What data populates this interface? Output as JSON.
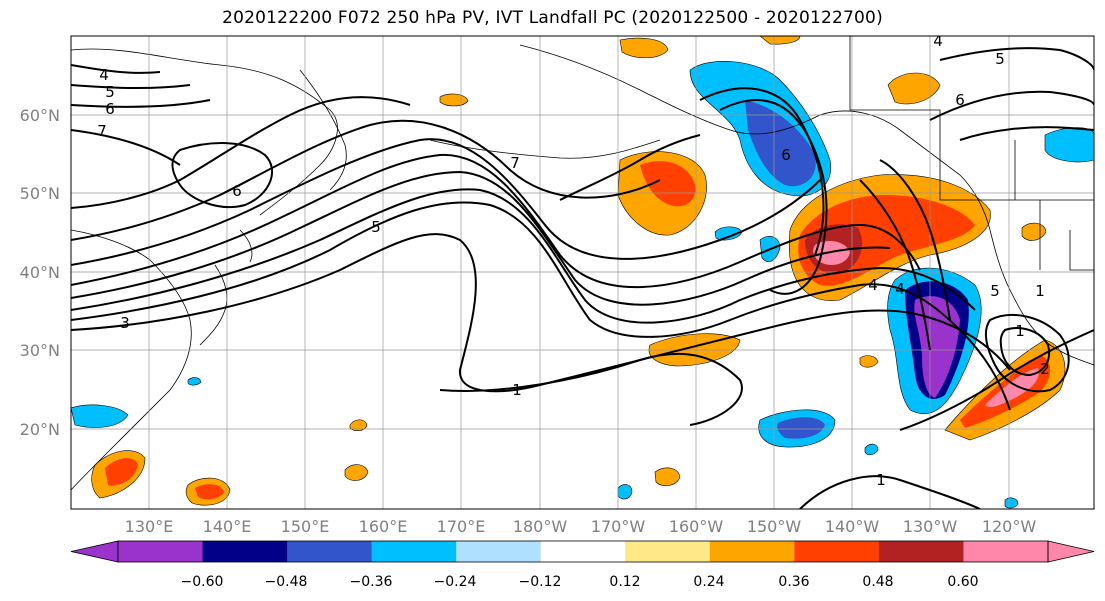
{
  "title": "2020122200 F072 250 hPa PV, IVT Landfall PC (2020122500 - 2020122700)",
  "lat_labels": [
    "60°N",
    "50°N",
    "40°N",
    "30°N",
    "20°N"
  ],
  "lon_labels": [
    "130°E",
    "140°E",
    "150°E",
    "160°E",
    "170°E",
    "180°W",
    "170°W",
    "160°W",
    "150°W",
    "140°W",
    "130°W",
    "120°W"
  ],
  "colorbar": {
    "colors": [
      "#9933cc",
      "#000088",
      "#3355cc",
      "#00bfff",
      "#b0e0ff",
      "#ffffff",
      "#ffe888",
      "#ffa500",
      "#ff4000",
      "#b22222",
      "#ff88aa"
    ],
    "ticks": [
      "−0.60",
      "−0.48",
      "−0.36",
      "−0.24",
      "−0.12",
      "0.12",
      "0.24",
      "0.36",
      "0.48",
      "0.60"
    ]
  },
  "contour_labels": [
    "4",
    "5",
    "6",
    "7",
    "6",
    "5",
    "7",
    "6",
    "4",
    "1",
    "1",
    "4",
    "5",
    "6",
    "3",
    "1",
    "5",
    "1",
    "2",
    "4"
  ],
  "colors": {
    "land_line": "#000000",
    "grid": "#999999",
    "contour": "#000000"
  }
}
